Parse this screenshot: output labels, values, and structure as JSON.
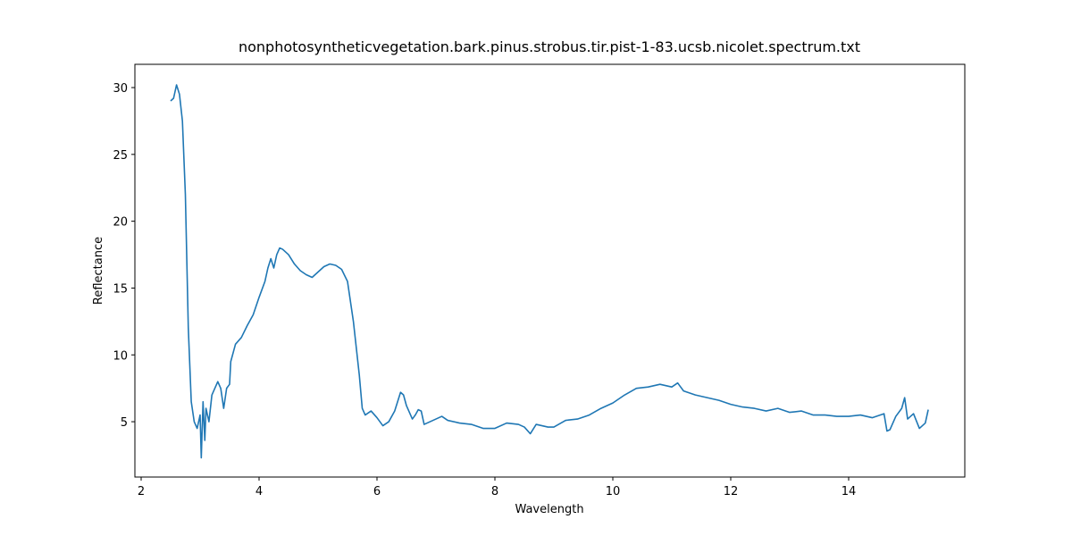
{
  "chart_data": {
    "type": "line",
    "title": "nonphotosyntheticvegetation.bark.pinus.strobus.tir.pist-1-83.ucsb.nicolet.spectrum.txt",
    "xlabel": "Wavelength",
    "ylabel": "Reflectance",
    "xlim": [
      1.894,
      15.97
    ],
    "ylim": [
      0.86,
      31.74
    ],
    "xticks": [
      2,
      4,
      6,
      8,
      10,
      12,
      14
    ],
    "yticks": [
      5,
      10,
      15,
      20,
      25,
      30
    ],
    "grid": false,
    "series": [
      {
        "name": "Reflectance",
        "color": "#1f77b4",
        "x": [
          2.5,
          2.55,
          2.6,
          2.65,
          2.7,
          2.75,
          2.8,
          2.85,
          2.9,
          2.95,
          3.0,
          3.02,
          3.05,
          3.08,
          3.1,
          3.15,
          3.2,
          3.25,
          3.3,
          3.35,
          3.4,
          3.45,
          3.5,
          3.52,
          3.6,
          3.7,
          3.8,
          3.9,
          4.0,
          4.1,
          4.15,
          4.2,
          4.25,
          4.3,
          4.35,
          4.4,
          4.5,
          4.6,
          4.7,
          4.8,
          4.9,
          5.0,
          5.1,
          5.2,
          5.3,
          5.4,
          5.5,
          5.6,
          5.7,
          5.75,
          5.8,
          5.9,
          6.0,
          6.1,
          6.2,
          6.3,
          6.4,
          6.45,
          6.5,
          6.6,
          6.65,
          6.7,
          6.75,
          6.8,
          6.9,
          7.0,
          7.1,
          7.2,
          7.4,
          7.6,
          7.8,
          8.0,
          8.2,
          8.4,
          8.5,
          8.6,
          8.7,
          8.9,
          9.0,
          9.2,
          9.4,
          9.6,
          9.8,
          10.0,
          10.2,
          10.4,
          10.6,
          10.8,
          11.0,
          11.1,
          11.2,
          11.4,
          11.6,
          11.8,
          12.0,
          12.2,
          12.4,
          12.6,
          12.8,
          13.0,
          13.2,
          13.4,
          13.6,
          13.8,
          14.0,
          14.2,
          14.4,
          14.6,
          14.65,
          14.7,
          14.8,
          14.9,
          14.95,
          15.0,
          15.1,
          15.2,
          15.3,
          15.35
        ],
        "values": [
          29.0,
          29.2,
          30.2,
          29.5,
          27.5,
          22,
          12,
          6.5,
          5,
          4.5,
          5.5,
          2.3,
          6.5,
          3.6,
          6,
          5,
          7,
          7.5,
          8,
          7.5,
          6,
          7.5,
          7.8,
          9.5,
          10.8,
          11.3,
          12.2,
          13.0,
          14.3,
          15.5,
          16.5,
          17.2,
          16.5,
          17.5,
          18.0,
          17.9,
          17.5,
          16.8,
          16.3,
          16.0,
          15.8,
          16.2,
          16.6,
          16.8,
          16.7,
          16.4,
          15.5,
          12.5,
          8.5,
          6,
          5.5,
          5.8,
          5.3,
          4.7,
          5.0,
          5.8,
          7.2,
          7.0,
          6.2,
          5.2,
          5.5,
          5.9,
          5.8,
          4.8,
          5.0,
          5.2,
          5.4,
          5.1,
          4.9,
          4.8,
          4.5,
          4.5,
          4.9,
          4.8,
          4.6,
          4.1,
          4.8,
          4.6,
          4.6,
          5.1,
          5.2,
          5.5,
          6.0,
          6.4,
          7.0,
          7.5,
          7.6,
          7.8,
          7.6,
          7.9,
          7.3,
          7.0,
          6.8,
          6.6,
          6.3,
          6.1,
          6.0,
          5.8,
          6.0,
          5.7,
          5.8,
          5.5,
          5.5,
          5.4,
          5.4,
          5.5,
          5.3,
          5.6,
          4.3,
          4.4,
          5.4,
          6.0,
          6.8,
          5.2,
          5.6,
          4.5,
          4.9,
          5.9
        ]
      }
    ]
  }
}
